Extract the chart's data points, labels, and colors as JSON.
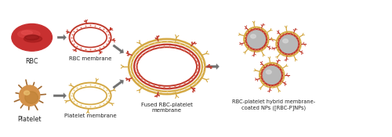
{
  "bg_color": "#ffffff",
  "rbc_color": "#c0392b",
  "rbc_highlight": "#d45050",
  "rbc_shadow": "#7a0000",
  "platelet_color": "#d4924a",
  "platelet_dark": "#a06830",
  "platelet_highlight": "#e8b870",
  "membrane_red": "#c0392b",
  "membrane_gold": "#d4a843",
  "bead_red": "#e07060",
  "bead_gold": "#e8cc80",
  "np_core_color": "#b8b8b8",
  "np_core_highlight": "#d8d8d8",
  "arrow_color": "#707070",
  "text_color": "#222222",
  "label_rbc": "RBC",
  "label_rbc_mem": "RBC membrane",
  "label_platelet": "Platelet",
  "label_platelet_mem": "Platelet membrane",
  "label_fused": "Fused RBC-platelet\nmembrane",
  "label_np": "RBC-platelet hybrid membrane-\ncoated NPs ([RBC-P]NPs)",
  "figsize": [
    5.0,
    1.75
  ],
  "dpi": 100
}
